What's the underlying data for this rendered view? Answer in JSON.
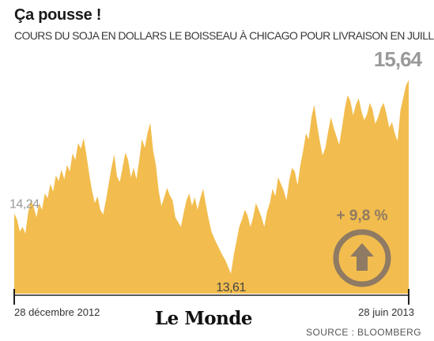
{
  "title": "Ça pousse !",
  "subtitle": "COURS DU SOJA EN DOLLARS LE BOISSEAU À CHICAGO POUR LIVRAISON EN JUILLET",
  "logo": "Le Monde",
  "source": "SOURCE : BLOOMBERG",
  "colors": {
    "area": "#f2bd4e",
    "accent": "#8f7a63",
    "label": "#9a9a9a"
  },
  "badge": {
    "text": "+ 9,8 %",
    "icon": "up-arrow-icon"
  },
  "chart_data": {
    "type": "area",
    "title": "Ça pousse !",
    "subtitle": "COURS DU SOJA EN DOLLARS LE BOISSEAU À CHICAGO POUR LIVRAISON EN JUILLET",
    "xlabel": "",
    "ylabel": "",
    "x_start_label": "28 décembre 2012",
    "x_end_label": "28 juin 2013",
    "ylim": [
      13.4,
      15.75
    ],
    "grid": false,
    "annotations": [
      {
        "label": "14,24",
        "index": 0,
        "value": 14.24
      },
      {
        "label": "13,61",
        "index": 78,
        "value": 13.61
      },
      {
        "label": "15,64",
        "index": 142,
        "value": 15.64
      }
    ],
    "values": [
      14.24,
      14.18,
      14.05,
      14.1,
      14.03,
      14.25,
      14.38,
      14.31,
      14.2,
      14.35,
      14.28,
      14.45,
      14.4,
      14.55,
      14.47,
      14.64,
      14.58,
      14.7,
      14.6,
      14.75,
      14.68,
      14.87,
      14.8,
      14.98,
      14.92,
      15.03,
      14.85,
      14.65,
      14.48,
      14.35,
      14.42,
      14.28,
      14.23,
      14.38,
      14.55,
      14.72,
      14.86,
      14.63,
      14.57,
      14.72,
      14.88,
      14.8,
      14.62,
      14.72,
      14.6,
      14.8,
      15.02,
      14.93,
      15.09,
      15.19,
      14.9,
      14.75,
      14.48,
      14.32,
      14.41,
      14.51,
      14.43,
      14.38,
      14.2,
      14.15,
      14.1,
      14.25,
      14.38,
      14.45,
      14.32,
      14.41,
      14.28,
      14.4,
      14.5,
      14.33,
      14.18,
      14.05,
      13.98,
      13.92,
      13.86,
      13.8,
      13.75,
      13.68,
      13.61,
      13.8,
      13.95,
      14.1,
      14.18,
      14.28,
      14.22,
      14.1,
      14.2,
      14.35,
      14.28,
      14.2,
      14.1,
      14.26,
      14.35,
      14.5,
      14.42,
      14.62,
      14.55,
      14.48,
      14.38,
      14.59,
      14.72,
      14.68,
      14.54,
      14.75,
      14.9,
      15.08,
      15.02,
      15.25,
      15.38,
      15.18,
      15.0,
      14.85,
      14.93,
      15.1,
      15.25,
      15.14,
      15.05,
      14.96,
      15.15,
      15.34,
      15.48,
      15.42,
      15.27,
      15.38,
      15.45,
      15.31,
      15.22,
      15.28,
      15.4,
      15.33,
      15.18,
      15.25,
      15.35,
      15.4,
      15.28,
      15.14,
      15.2,
      15.08,
      15.0,
      15.32,
      15.45,
      15.58,
      15.64
    ]
  }
}
